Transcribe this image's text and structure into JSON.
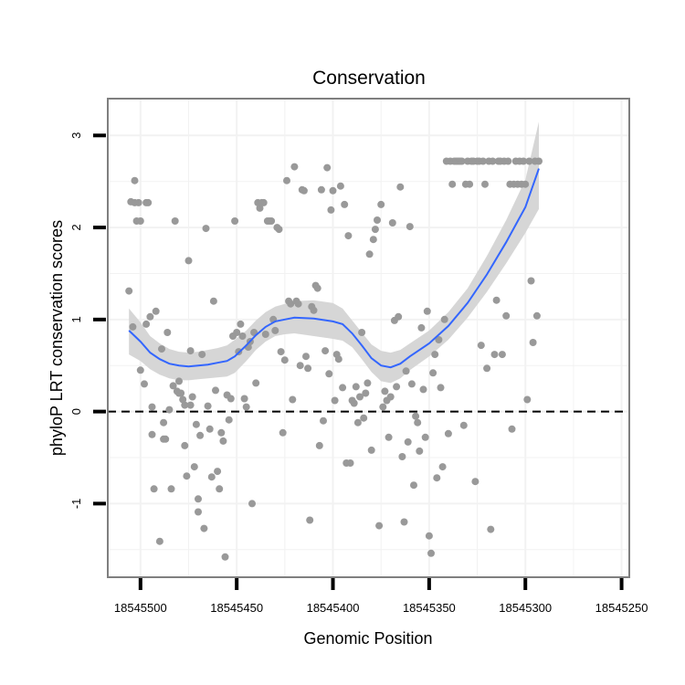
{
  "chart_data": {
    "type": "scatter",
    "title": "Conservation",
    "xlabel": "Genomic Position",
    "ylabel": "phyloP LRT conservation scores",
    "xlim": [
      18545517,
      18545246
    ],
    "x_reversed": true,
    "ylim": [
      -1.8,
      3.4
    ],
    "x_ticks": [
      18545500,
      18545450,
      18545400,
      18545350,
      18545300,
      18545250
    ],
    "x_tick_labels": [
      "18545500",
      "18545450",
      "18545400",
      "18545350",
      "18545300",
      "18545250"
    ],
    "y_ticks": [
      -1,
      0,
      1,
      2,
      3
    ],
    "y_tick_labels": [
      "-1",
      "0",
      "1",
      "2",
      "3"
    ],
    "grid": true,
    "reference_line": {
      "y": 0,
      "style": "dashed"
    },
    "point_color": "#999999",
    "smooth_color": "#3366FF",
    "band_color": "#D4D4D4",
    "points": [
      [
        18545506,
        1.31
      ],
      [
        18545505,
        2.28
      ],
      [
        18545504,
        0.92
      ],
      [
        18545503,
        2.51
      ],
      [
        18545503,
        2.27
      ],
      [
        18545502,
        2.07
      ],
      [
        18545501,
        2.27
      ],
      [
        18545500,
        2.07
      ],
      [
        18545500,
        0.45
      ],
      [
        18545498,
        0.3
      ],
      [
        18545497,
        2.27
      ],
      [
        18545497,
        0.95
      ],
      [
        18545496,
        2.27
      ],
      [
        18545495,
        1.03
      ],
      [
        18545494,
        0.05
      ],
      [
        18545494,
        -0.25
      ],
      [
        18545493,
        -0.84
      ],
      [
        18545492,
        1.09
      ],
      [
        18545490,
        -1.41
      ],
      [
        18545489,
        0.68
      ],
      [
        18545488,
        -0.12
      ],
      [
        18545488,
        -0.3
      ],
      [
        18545487,
        -0.3
      ],
      [
        18545486,
        0.86
      ],
      [
        18545485,
        0.02
      ],
      [
        18545484,
        -0.84
      ],
      [
        18545483,
        0.28
      ],
      [
        18545482,
        2.07
      ],
      [
        18545481,
        0.22
      ],
      [
        18545480,
        0.33
      ],
      [
        18545480,
        0.2
      ],
      [
        18545479,
        0.2
      ],
      [
        18545478,
        0.13
      ],
      [
        18545477,
        -0.37
      ],
      [
        18545477,
        0.07
      ],
      [
        18545476,
        -0.7
      ],
      [
        18545475,
        1.64
      ],
      [
        18545474,
        0.07
      ],
      [
        18545474,
        0.66
      ],
      [
        18545473,
        0.16
      ],
      [
        18545472,
        -0.6
      ],
      [
        18545471,
        -0.14
      ],
      [
        18545470,
        -1.09
      ],
      [
        18545470,
        -0.95
      ],
      [
        18545469,
        -0.26
      ],
      [
        18545468,
        0.62
      ],
      [
        18545467,
        -1.27
      ],
      [
        18545466,
        1.99
      ],
      [
        18545465,
        0.06
      ],
      [
        18545464,
        -0.19
      ],
      [
        18545463,
        -0.71
      ],
      [
        18545462,
        1.2
      ],
      [
        18545461,
        0.23
      ],
      [
        18545460,
        -0.65
      ],
      [
        18545459,
        -0.84
      ],
      [
        18545458,
        -0.23
      ],
      [
        18545457,
        -0.32
      ],
      [
        18545456,
        -1.58
      ],
      [
        18545455,
        0.18
      ],
      [
        18545454,
        -0.09
      ],
      [
        18545453,
        0.14
      ],
      [
        18545452,
        0.82
      ],
      [
        18545451,
        2.07
      ],
      [
        18545450,
        0.86
      ],
      [
        18545449,
        0.65
      ],
      [
        18545448,
        0.95
      ],
      [
        18545447,
        0.82
      ],
      [
        18545446,
        0.14
      ],
      [
        18545445,
        0.05
      ],
      [
        18545444,
        0.7
      ],
      [
        18545443,
        0.76
      ],
      [
        18545442,
        -1.0
      ],
      [
        18545441,
        0.86
      ],
      [
        18545440,
        0.31
      ],
      [
        18545439,
        2.27
      ],
      [
        18545438,
        2.21
      ],
      [
        18545437,
        2.27
      ],
      [
        18545436,
        2.27
      ],
      [
        18545435,
        0.84
      ],
      [
        18545434,
        2.07
      ],
      [
        18545433,
        2.07
      ],
      [
        18545432,
        2.07
      ],
      [
        18545431,
        1.0
      ],
      [
        18545430,
        0.88
      ],
      [
        18545429,
        2.0
      ],
      [
        18545428,
        1.98
      ],
      [
        18545427,
        0.65
      ],
      [
        18545426,
        -0.23
      ],
      [
        18545425,
        0.56
      ],
      [
        18545424,
        2.51
      ],
      [
        18545423,
        1.2
      ],
      [
        18545422,
        1.17
      ],
      [
        18545421,
        0.13
      ],
      [
        18545420,
        2.66
      ],
      [
        18545419,
        1.2
      ],
      [
        18545418,
        1.17
      ],
      [
        18545417,
        0.5
      ],
      [
        18545416,
        2.41
      ],
      [
        18545415,
        2.4
      ],
      [
        18545414,
        0.6
      ],
      [
        18545413,
        0.47
      ],
      [
        18545412,
        -1.18
      ],
      [
        18545411,
        1.14
      ],
      [
        18545410,
        1.1
      ],
      [
        18545409,
        1.37
      ],
      [
        18545408,
        1.34
      ],
      [
        18545407,
        -0.37
      ],
      [
        18545406,
        2.41
      ],
      [
        18545405,
        -0.1
      ],
      [
        18545404,
        0.66
      ],
      [
        18545403,
        2.65
      ],
      [
        18545402,
        0.41
      ],
      [
        18545401,
        2.19
      ],
      [
        18545400,
        2.4
      ],
      [
        18545399,
        0.12
      ],
      [
        18545398,
        0.62
      ],
      [
        18545397,
        0.57
      ],
      [
        18545396,
        2.45
      ],
      [
        18545395,
        0.26
      ],
      [
        18545394,
        2.25
      ],
      [
        18545393,
        -0.56
      ],
      [
        18545392,
        1.91
      ],
      [
        18545391,
        -0.56
      ],
      [
        18545390,
        0.12
      ],
      [
        18545389,
        0.09
      ],
      [
        18545388,
        0.27
      ],
      [
        18545387,
        -0.12
      ],
      [
        18545386,
        0.16
      ],
      [
        18545385,
        0.86
      ],
      [
        18545384,
        -0.07
      ],
      [
        18545383,
        0.2
      ],
      [
        18545382,
        0.31
      ],
      [
        18545381,
        1.71
      ],
      [
        18545380,
        -0.42
      ],
      [
        18545379,
        1.87
      ],
      [
        18545378,
        1.98
      ],
      [
        18545377,
        2.08
      ],
      [
        18545376,
        -1.24
      ],
      [
        18545375,
        2.25
      ],
      [
        18545374,
        0.05
      ],
      [
        18545373,
        0.22
      ],
      [
        18545372,
        0.12
      ],
      [
        18545371,
        -0.28
      ],
      [
        18545370,
        0.16
      ],
      [
        18545369,
        2.05
      ],
      [
        18545368,
        0.99
      ],
      [
        18545367,
        0.27
      ],
      [
        18545366,
        1.03
      ],
      [
        18545365,
        2.44
      ],
      [
        18545364,
        -0.49
      ],
      [
        18545363,
        -1.2
      ],
      [
        18545362,
        0.44
      ],
      [
        18545361,
        -0.33
      ],
      [
        18545360,
        2.01
      ],
      [
        18545359,
        0.3
      ],
      [
        18545358,
        -0.8
      ],
      [
        18545357,
        -0.05
      ],
      [
        18545356,
        -0.12
      ],
      [
        18545355,
        -0.43
      ],
      [
        18545354,
        0.91
      ],
      [
        18545353,
        0.24
      ],
      [
        18545352,
        -0.28
      ],
      [
        18545351,
        1.09
      ],
      [
        18545350,
        -1.35
      ],
      [
        18545349,
        -1.54
      ],
      [
        18545348,
        0.42
      ],
      [
        18545347,
        0.62
      ],
      [
        18545346,
        -0.72
      ],
      [
        18545345,
        0.78
      ],
      [
        18545344,
        0.26
      ],
      [
        18545343,
        -0.6
      ],
      [
        18545342,
        1.0
      ],
      [
        18545341,
        2.72
      ],
      [
        18545340,
        -0.24
      ],
      [
        18545339,
        2.72
      ],
      [
        18545338,
        2.47
      ],
      [
        18545337,
        2.72
      ],
      [
        18545336,
        2.72
      ],
      [
        18545335,
        2.72
      ],
      [
        18545334,
        2.72
      ],
      [
        18545333,
        2.72
      ],
      [
        18545332,
        -0.15
      ],
      [
        18545331,
        2.47
      ],
      [
        18545330,
        2.72
      ],
      [
        18545329,
        2.47
      ],
      [
        18545328,
        2.72
      ],
      [
        18545327,
        2.72
      ],
      [
        18545326,
        -0.76
      ],
      [
        18545325,
        2.72
      ],
      [
        18545324,
        2.72
      ],
      [
        18545323,
        0.72
      ],
      [
        18545322,
        2.72
      ],
      [
        18545321,
        2.47
      ],
      [
        18545320,
        0.47
      ],
      [
        18545319,
        2.72
      ],
      [
        18545318,
        -1.28
      ],
      [
        18545317,
        2.72
      ],
      [
        18545316,
        0.62
      ],
      [
        18545315,
        1.21
      ],
      [
        18545314,
        2.72
      ],
      [
        18545313,
        2.72
      ],
      [
        18545312,
        0.62
      ],
      [
        18545311,
        2.72
      ],
      [
        18545310,
        1.04
      ],
      [
        18545309,
        2.72
      ],
      [
        18545308,
        2.47
      ],
      [
        18545307,
        -0.19
      ],
      [
        18545306,
        2.47
      ],
      [
        18545305,
        2.72
      ],
      [
        18545304,
        2.47
      ],
      [
        18545303,
        2.72
      ],
      [
        18545302,
        2.47
      ],
      [
        18545301,
        2.72
      ],
      [
        18545300,
        2.47
      ],
      [
        18545299,
        0.13
      ],
      [
        18545298,
        2.72
      ],
      [
        18545297,
        1.42
      ],
      [
        18545296,
        0.75
      ],
      [
        18545295,
        2.72
      ],
      [
        18545294,
        1.04
      ],
      [
        18545293,
        2.72
      ]
    ],
    "smooth_fit": [
      [
        18545506,
        0.88
      ],
      [
        18545500,
        0.76
      ],
      [
        18545495,
        0.64
      ],
      [
        18545490,
        0.57
      ],
      [
        18545485,
        0.52
      ],
      [
        18545480,
        0.5
      ],
      [
        18545475,
        0.49
      ],
      [
        18545470,
        0.5
      ],
      [
        18545465,
        0.51
      ],
      [
        18545460,
        0.53
      ],
      [
        18545455,
        0.55
      ],
      [
        18545451,
        0.6
      ],
      [
        18545445,
        0.72
      ],
      [
        18545440,
        0.83
      ],
      [
        18545435,
        0.92
      ],
      [
        18545430,
        0.98
      ],
      [
        18545425,
        1.0
      ],
      [
        18545420,
        1.02
      ],
      [
        18545410,
        1.01
      ],
      [
        18545400,
        0.98
      ],
      [
        18545395,
        0.95
      ],
      [
        18545390,
        0.85
      ],
      [
        18545385,
        0.72
      ],
      [
        18545380,
        0.58
      ],
      [
        18545375,
        0.5
      ],
      [
        18545370,
        0.48
      ],
      [
        18545365,
        0.52
      ],
      [
        18545360,
        0.6
      ],
      [
        18545350,
        0.74
      ],
      [
        18545340,
        0.93
      ],
      [
        18545330,
        1.18
      ],
      [
        18545320,
        1.49
      ],
      [
        18545310,
        1.84
      ],
      [
        18545300,
        2.22
      ],
      [
        18545293,
        2.64
      ]
    ],
    "smooth_upper": [
      [
        18545506,
        1.12
      ],
      [
        18545500,
        0.97
      ],
      [
        18545495,
        0.82
      ],
      [
        18545490,
        0.74
      ],
      [
        18545485,
        0.68
      ],
      [
        18545480,
        0.65
      ],
      [
        18545475,
        0.64
      ],
      [
        18545470,
        0.65
      ],
      [
        18545465,
        0.67
      ],
      [
        18545460,
        0.69
      ],
      [
        18545455,
        0.72
      ],
      [
        18545451,
        0.78
      ],
      [
        18545445,
        0.88
      ],
      [
        18545440,
        0.99
      ],
      [
        18545435,
        1.08
      ],
      [
        18545430,
        1.14
      ],
      [
        18545425,
        1.17
      ],
      [
        18545420,
        1.2
      ],
      [
        18545410,
        1.21
      ],
      [
        18545400,
        1.18
      ],
      [
        18545395,
        1.12
      ],
      [
        18545390,
        0.99
      ],
      [
        18545385,
        0.86
      ],
      [
        18545380,
        0.73
      ],
      [
        18545375,
        0.66
      ],
      [
        18545370,
        0.64
      ],
      [
        18545365,
        0.67
      ],
      [
        18545360,
        0.74
      ],
      [
        18545350,
        0.88
      ],
      [
        18545340,
        1.08
      ],
      [
        18545330,
        1.34
      ],
      [
        18545320,
        1.69
      ],
      [
        18545310,
        2.08
      ],
      [
        18545300,
        2.52
      ],
      [
        18545293,
        3.15
      ]
    ],
    "smooth_lower": [
      [
        18545506,
        0.62
      ],
      [
        18545500,
        0.55
      ],
      [
        18545495,
        0.46
      ],
      [
        18545490,
        0.4
      ],
      [
        18545485,
        0.36
      ],
      [
        18545480,
        0.34
      ],
      [
        18545475,
        0.34
      ],
      [
        18545470,
        0.35
      ],
      [
        18545465,
        0.36
      ],
      [
        18545460,
        0.37
      ],
      [
        18545455,
        0.38
      ],
      [
        18545451,
        0.42
      ],
      [
        18545445,
        0.55
      ],
      [
        18545440,
        0.67
      ],
      [
        18545435,
        0.76
      ],
      [
        18545430,
        0.82
      ],
      [
        18545425,
        0.84
      ],
      [
        18545420,
        0.85
      ],
      [
        18545410,
        0.82
      ],
      [
        18545400,
        0.79
      ],
      [
        18545395,
        0.77
      ],
      [
        18545390,
        0.7
      ],
      [
        18545385,
        0.57
      ],
      [
        18545380,
        0.43
      ],
      [
        18545375,
        0.33
      ],
      [
        18545370,
        0.31
      ],
      [
        18545365,
        0.36
      ],
      [
        18545360,
        0.45
      ],
      [
        18545350,
        0.6
      ],
      [
        18545340,
        0.78
      ],
      [
        18545330,
        1.02
      ],
      [
        18545320,
        1.3
      ],
      [
        18545310,
        1.61
      ],
      [
        18545300,
        1.94
      ],
      [
        18545293,
        2.2
      ]
    ]
  }
}
